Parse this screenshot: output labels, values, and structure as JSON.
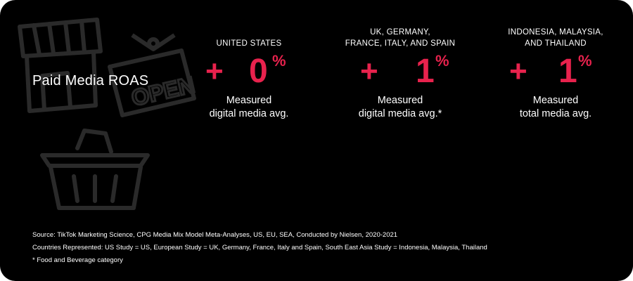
{
  "title": "Paid Media ROAS",
  "colors": {
    "accent": "#e8224d",
    "background": "#000000",
    "text": "#ffffff",
    "icon_outline": "#2a2a2a"
  },
  "background_icons": [
    "storefront-icon",
    "open-sign-icon",
    "shopping-basket-icon"
  ],
  "open_sign_text": "OPEN",
  "stats": [
    {
      "region_lines": [
        "UNITED STATES"
      ],
      "plus": "+",
      "value": "0",
      "unit": "%",
      "desc_lines": [
        "Measured",
        "digital media avg."
      ]
    },
    {
      "region_lines": [
        "UK, GERMANY,",
        "FRANCE, ITALY, AND SPAIN"
      ],
      "plus": "+",
      "value": "1",
      "unit": "%",
      "desc_lines": [
        "Measured",
        "digital media avg.*"
      ]
    },
    {
      "region_lines": [
        "INDONESIA, MALAYSIA,",
        "AND THAILAND"
      ],
      "plus": "+",
      "value": "1",
      "unit": "%",
      "desc_lines": [
        "Measured",
        "total media avg."
      ]
    }
  ],
  "footer": [
    "Source: TikTok Marketing Science, CPG Media Mix Model Meta-Analyses, US, EU, SEA, Conducted by Nielsen, 2020-2021",
    "Countries Represented: US Study = US, European Study = UK, Germany, France, Italy and Spain, South East Asia Study = Indonesia, Malaysia, Thailand",
    "* Food and Beverage category"
  ]
}
